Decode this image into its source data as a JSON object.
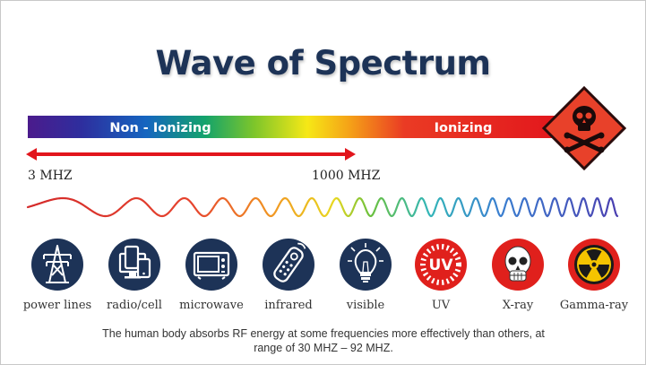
{
  "title": "Wave of Spectrum",
  "spectrum": {
    "non_ionizing_label": "Non - Ionizing",
    "ionizing_label": "Ionizing",
    "range_start_label": "3 MHZ",
    "range_end_label": "1000 MHZ"
  },
  "icons": [
    {
      "name": "power-lines",
      "label": "power lines",
      "icon": "power-tower-icon",
      "color": "#1d3357"
    },
    {
      "name": "radio-cell",
      "label": "radio/cell",
      "icon": "devices-icon",
      "color": "#1d3357"
    },
    {
      "name": "microwave",
      "label": "microwave",
      "icon": "microwave-icon",
      "color": "#1d3357"
    },
    {
      "name": "infrared",
      "label": "infrared",
      "icon": "remote-control-icon",
      "color": "#1d3357"
    },
    {
      "name": "visible",
      "label": "visible",
      "icon": "light-bulb-icon",
      "color": "#1d3357"
    },
    {
      "name": "uv",
      "label": "UV",
      "icon": "uv-sun-icon",
      "color": "#e0201c",
      "icon_text": "UV"
    },
    {
      "name": "x-ray",
      "label": "X-ray",
      "icon": "skull-xray-icon",
      "color": "#e0201c"
    },
    {
      "name": "gamma-ray",
      "label": "Gamma-ray",
      "icon": "radiation-icon",
      "color": "#e0201c"
    }
  ],
  "hazard_icon": "skull-crossbones-icon",
  "footnote": "The human body absorbs RF energy at some frequencies more effectively than others, at range of 30 MHZ – 92 MHZ.",
  "colors": {
    "navy": "#1d3357",
    "red": "#e0201c",
    "hazard_orange": "#e8412a"
  }
}
